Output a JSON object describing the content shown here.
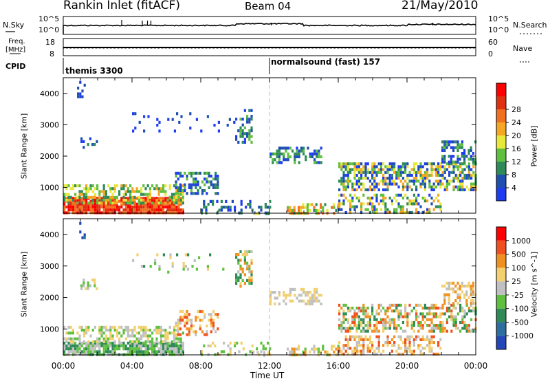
{
  "header": {
    "radar_title": "Rankin Inlet (fitACF)",
    "beam": "Beam 04",
    "date": "21/May/2010"
  },
  "noise_panel": {
    "left_label": "N.Sky",
    "right_label": "N.Search",
    "tick_top": "10^5",
    "tick_bottom": "10^0"
  },
  "freq_panel": {
    "left_label_line1": "Freq.",
    "left_label_line2": "[MHz]",
    "left_ticks": [
      "18",
      "8"
    ],
    "right_label": "Nave",
    "right_ticks": [
      "60",
      "0"
    ]
  },
  "cpid_panel": {
    "label": "CPID",
    "segments": [
      "themis 3300",
      "normalsound (fast) 157"
    ]
  },
  "chart_data": [
    {
      "type": "heatmap",
      "title": "",
      "xlabel": "Time UT",
      "ylabel": "Slant Range [km]",
      "x_ticks": [
        "00:00",
        "04:00",
        "08:00",
        "12:00",
        "16:00",
        "20:00",
        "00:00"
      ],
      "y_ticks": [
        1000,
        2000,
        3000,
        4000
      ],
      "xlim_hours": [
        0,
        24
      ],
      "ylim_km": [
        180,
        4500
      ],
      "colorbar_label": "Power [dB]",
      "colorbar_ticks": [
        "4",
        "8",
        "12",
        "16",
        "20",
        "24",
        "28"
      ],
      "colorbar_colors": [
        "#1e3cf0",
        "#1f4fb0",
        "#2e8b57",
        "#5fbf3f",
        "#e8e83a",
        "#f5a623",
        "#f07020",
        "#e03010",
        "#ff0000"
      ]
    },
    {
      "type": "heatmap",
      "title": "",
      "xlabel": "Time UT",
      "ylabel": "Slant Range [km]",
      "x_ticks": [
        "00:00",
        "04:00",
        "08:00",
        "12:00",
        "16:00",
        "20:00",
        "00:00"
      ],
      "y_ticks": [
        1000,
        2000,
        3000,
        4000
      ],
      "xlim_hours": [
        0,
        24
      ],
      "ylim_km": [
        180,
        4500
      ],
      "colorbar_label": "Velocity [m s^-1]",
      "colorbar_ticks": [
        "1000",
        "500",
        "100",
        "25",
        "-25",
        "-100",
        "-500",
        "-1000"
      ],
      "colorbar_colors": [
        "#2546b8",
        "#2e6e9e",
        "#2e8b57",
        "#5fbf3f",
        "#c0c0c0",
        "#f2d070",
        "#f09020",
        "#f05020",
        "#ff0000"
      ]
    }
  ]
}
